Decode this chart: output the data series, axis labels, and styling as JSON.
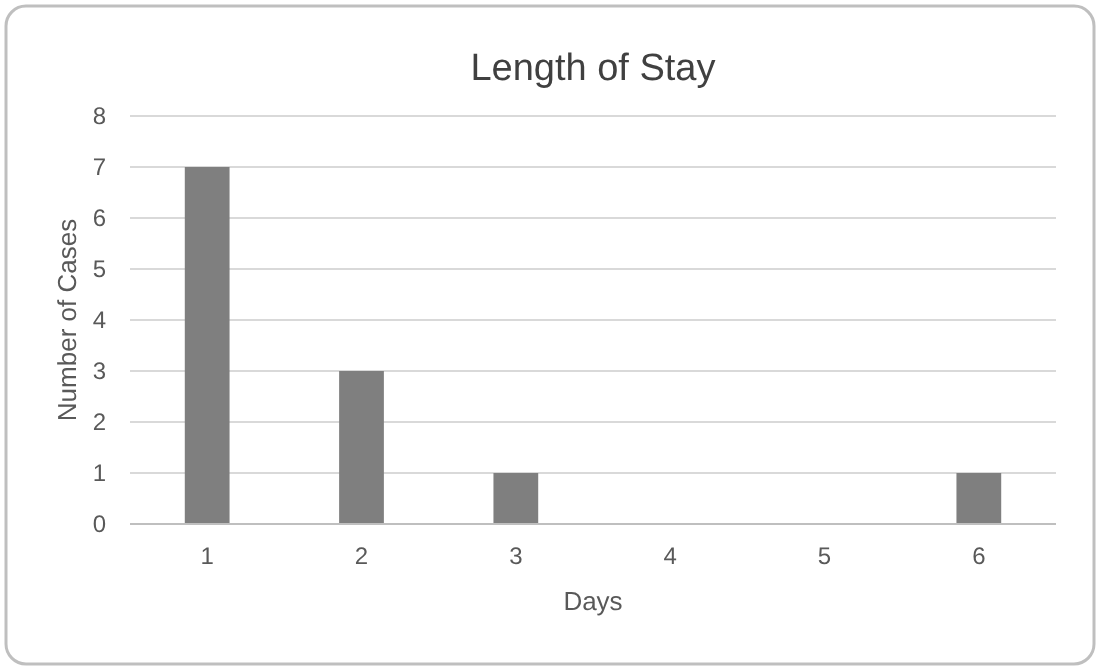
{
  "chart_data": {
    "type": "bar",
    "title": "Length of Stay",
    "xlabel": "Days",
    "ylabel": "Number of Cases",
    "categories": [
      "1",
      "2",
      "3",
      "4",
      "5",
      "6"
    ],
    "values": [
      7,
      3,
      1,
      0,
      0,
      1
    ],
    "color": "#7f7f7f",
    "ylim": [
      0,
      8
    ],
    "yticks": [
      0,
      1,
      2,
      3,
      4,
      5,
      6,
      7,
      8
    ],
    "grid": "y"
  }
}
